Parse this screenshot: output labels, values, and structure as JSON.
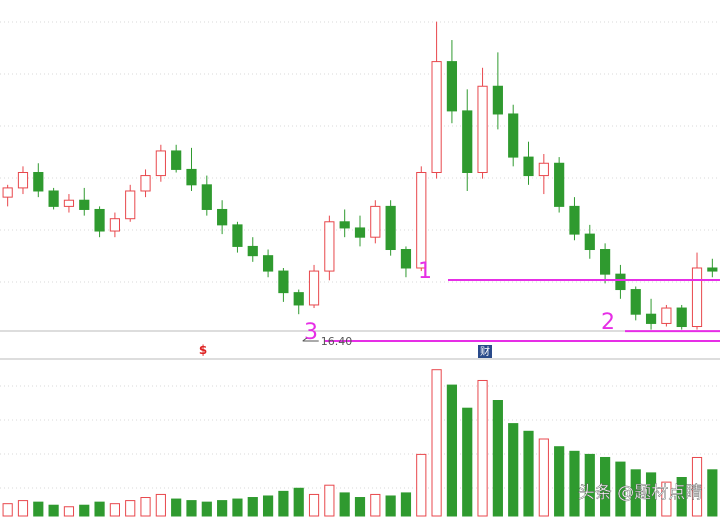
{
  "chart_data": {
    "type": "candlestick",
    "up_color": "#e8474c",
    "down_color": "#2f9a2f",
    "level_color": "#e62ee6",
    "ylim": [
      15.4,
      26.6
    ],
    "volume_ylim": [
      0,
      100
    ],
    "open": [
      20.2,
      20.5,
      21.0,
      20.4,
      19.9,
      20.1,
      19.8,
      19.1,
      19.5,
      20.4,
      20.9,
      21.7,
      21.1,
      20.6,
      19.8,
      19.3,
      18.6,
      18.3,
      17.8,
      17.1,
      16.7,
      17.8,
      19.4,
      19.2,
      18.9,
      19.9,
      18.5,
      17.9,
      21.0,
      24.6,
      23.0,
      21.0,
      23.8,
      22.9,
      21.5,
      20.9,
      21.3,
      19.9,
      19.0,
      18.5,
      17.7,
      17.2,
      16.4,
      16.1,
      16.6,
      16.0,
      17.9
    ],
    "high": [
      20.6,
      21.2,
      21.3,
      20.5,
      20.3,
      20.5,
      19.9,
      19.7,
      20.6,
      21.1,
      21.9,
      21.9,
      21.8,
      20.9,
      20.1,
      19.4,
      18.9,
      18.5,
      17.9,
      17.2,
      18.0,
      19.6,
      19.8,
      19.6,
      20.1,
      20.1,
      18.6,
      21.2,
      25.9,
      25.3,
      23.7,
      24.4,
      24.9,
      23.2,
      22.0,
      21.6,
      21.5,
      20.2,
      19.3,
      18.7,
      18.0,
      17.3,
      16.9,
      16.7,
      16.7,
      18.4,
      18.2
    ],
    "low": [
      19.9,
      20.3,
      20.2,
      19.8,
      19.7,
      19.6,
      18.9,
      18.9,
      19.4,
      20.2,
      20.7,
      21.0,
      20.4,
      19.6,
      19.0,
      18.4,
      18.1,
      17.6,
      16.8,
      16.4,
      16.6,
      17.5,
      18.9,
      18.6,
      18.7,
      18.3,
      17.6,
      17.8,
      20.8,
      22.6,
      20.4,
      20.8,
      22.4,
      21.2,
      20.6,
      20.3,
      19.7,
      18.8,
      18.2,
      17.4,
      16.9,
      16.2,
      15.9,
      16.0,
      15.9,
      15.9,
      17.6
    ],
    "close": [
      20.5,
      21.0,
      20.4,
      19.9,
      20.1,
      19.8,
      19.1,
      19.5,
      20.4,
      20.9,
      21.7,
      21.1,
      20.6,
      19.8,
      19.3,
      18.6,
      18.3,
      17.8,
      17.1,
      16.7,
      17.8,
      19.4,
      19.2,
      18.9,
      19.9,
      18.5,
      17.9,
      21.0,
      24.6,
      23.0,
      21.0,
      23.8,
      22.9,
      21.5,
      20.9,
      21.3,
      19.9,
      19.0,
      18.5,
      17.7,
      17.2,
      16.4,
      16.1,
      16.6,
      16.0,
      17.9,
      17.8
    ],
    "volume": [
      8,
      10,
      9,
      7,
      6,
      7,
      9,
      8,
      10,
      12,
      14,
      11,
      10,
      9,
      10,
      11,
      12,
      13,
      16,
      18,
      14,
      20,
      15,
      12,
      14,
      13,
      15,
      40,
      95,
      85,
      70,
      88,
      75,
      60,
      55,
      50,
      45,
      42,
      40,
      38,
      35,
      30,
      28,
      22,
      25,
      38,
      30
    ],
    "low_label": "16.40",
    "levels": [
      {
        "label": "1",
        "value": 17.51
      },
      {
        "label": "2",
        "value": 15.85
      },
      {
        "label": "3",
        "value": 15.53
      }
    ],
    "markers": [
      "$",
      "财"
    ],
    "watermark": "头条 @题材点睛"
  }
}
